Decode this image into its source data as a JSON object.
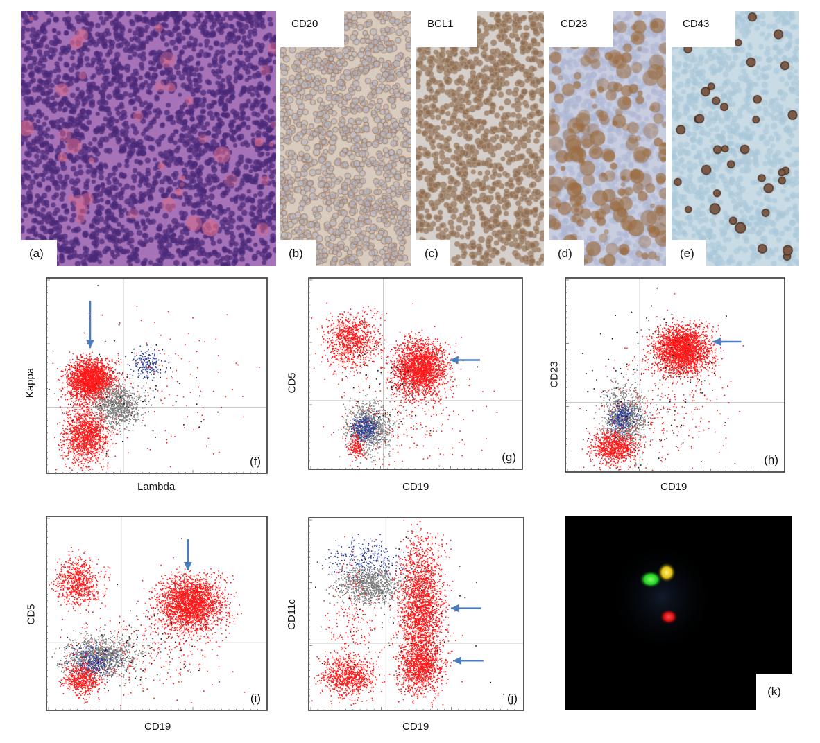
{
  "histology_panels": [
    {
      "letter": "(a)",
      "marker": "",
      "stain": "H&E"
    },
    {
      "letter": "(b)",
      "marker": "CD20",
      "stain": "IHC"
    },
    {
      "letter": "(c)",
      "marker": "BCL1",
      "stain": "IHC"
    },
    {
      "letter": "(d)",
      "marker": "CD23",
      "stain": "IHC"
    },
    {
      "letter": "(e)",
      "marker": "CD43",
      "stain": "IHC"
    }
  ],
  "flow_panels": [
    {
      "letter": "(f)",
      "xlabel": "Lambda",
      "ylabel": "Kappa",
      "arrow": "down"
    },
    {
      "letter": "(g)",
      "xlabel": "CD19",
      "ylabel": "CD5",
      "arrow": "left"
    },
    {
      "letter": "(h)",
      "xlabel": "CD19",
      "ylabel": "CD23",
      "arrow": "left"
    },
    {
      "letter": "(i)",
      "xlabel": "CD19",
      "ylabel": "CD5",
      "arrow": "down"
    },
    {
      "letter": "(j)",
      "xlabel": "CD19",
      "ylabel": "CD11c",
      "arrow": "left"
    }
  ],
  "fish_panel": {
    "letter": "(k)"
  },
  "colors": {
    "he_bg": "#a673b8",
    "he_nuclei": "#4b2a7a",
    "ihc_bg": "#c9ccd6",
    "ihc_brown": "#9a6a3c",
    "cd43_bg": "#c9dce6",
    "cd43_cell": "#4a2a18",
    "dot_red": "#ff1a1a",
    "dot_grey": "#7f7f7f",
    "dot_blue": "#2b3d9e",
    "dot_black": "#111111",
    "arrow": "#4a7ec0",
    "fish_green": "#22cc22",
    "fish_yellow": "#f2d21a",
    "fish_red": "#e01818"
  }
}
